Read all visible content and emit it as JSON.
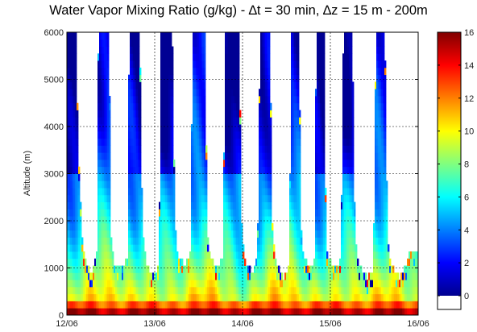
{
  "chart_data": {
    "type": "heatmap",
    "title": "Water Vapor Mixing Ratio (g/kg) - ∆t = 30 min, ∆z = 15 m - 200m",
    "xlabel": "",
    "ylabel": "Altitude (m)",
    "x_ticks": [
      "12/06",
      "13/06",
      "14/06",
      "15/06",
      "16/06"
    ],
    "y_ticks": [
      0,
      1000,
      2000,
      3000,
      4000,
      5000,
      6000
    ],
    "ylim": [
      0,
      6000
    ],
    "grid": true,
    "colorbar": {
      "label": "",
      "ticks": [
        0,
        2,
        4,
        6,
        8,
        10,
        12,
        14,
        16
      ],
      "range": [
        0,
        16
      ],
      "colormap": "jet",
      "nodata_color": "#ffffff"
    },
    "data_ceiling_m": [
      [
        0.0,
        6000
      ],
      [
        0.1,
        6000
      ],
      [
        0.14,
        3000
      ],
      [
        0.18,
        1500
      ],
      [
        0.22,
        1100
      ],
      [
        0.29,
        900
      ],
      [
        0.34,
        1400
      ],
      [
        0.36,
        6000
      ],
      [
        0.48,
        6000
      ],
      [
        0.5,
        1800
      ],
      [
        0.54,
        1100
      ],
      [
        0.63,
        1000
      ],
      [
        0.69,
        1200
      ],
      [
        0.71,
        6000
      ],
      [
        0.83,
        6000
      ],
      [
        0.86,
        1800
      ],
      [
        0.9,
        1100
      ],
      [
        0.99,
        800
      ],
      [
        1.05,
        1100
      ],
      [
        1.07,
        6000
      ],
      [
        1.2,
        6000
      ],
      [
        1.23,
        2000
      ],
      [
        1.26,
        1200
      ],
      [
        1.35,
        1100
      ],
      [
        1.41,
        1300
      ],
      [
        1.43,
        6000
      ],
      [
        1.57,
        6000
      ],
      [
        1.6,
        1800
      ],
      [
        1.63,
        1200
      ],
      [
        1.73,
        1000
      ],
      [
        1.78,
        1300
      ],
      [
        1.8,
        6000
      ],
      [
        1.96,
        6000
      ],
      [
        1.99,
        1900
      ],
      [
        2.02,
        1200
      ],
      [
        2.11,
        900
      ],
      [
        2.17,
        1200
      ],
      [
        2.2,
        6000
      ],
      [
        2.31,
        6000
      ],
      [
        2.34,
        1900
      ],
      [
        2.37,
        1200
      ],
      [
        2.47,
        800
      ],
      [
        2.53,
        1100
      ],
      [
        2.56,
        6000
      ],
      [
        2.64,
        6000
      ],
      [
        2.67,
        1700
      ],
      [
        2.7,
        1200
      ],
      [
        2.77,
        1000
      ],
      [
        2.82,
        1200
      ],
      [
        2.84,
        6000
      ],
      [
        2.93,
        6000
      ],
      [
        2.95,
        1600
      ],
      [
        2.98,
        1200
      ],
      [
        3.08,
        1000
      ],
      [
        3.12,
        1300
      ],
      [
        3.15,
        6000
      ],
      [
        3.25,
        6000
      ],
      [
        3.28,
        1700
      ],
      [
        3.32,
        1100
      ],
      [
        3.43,
        800
      ],
      [
        3.49,
        1000
      ],
      [
        3.52,
        6000
      ],
      [
        3.62,
        6000
      ],
      [
        3.65,
        1700
      ],
      [
        3.69,
        1100
      ],
      [
        3.79,
        800
      ],
      [
        3.86,
        1100
      ],
      [
        3.9,
        1300
      ],
      [
        4.0,
        1400
      ]
    ]
  }
}
